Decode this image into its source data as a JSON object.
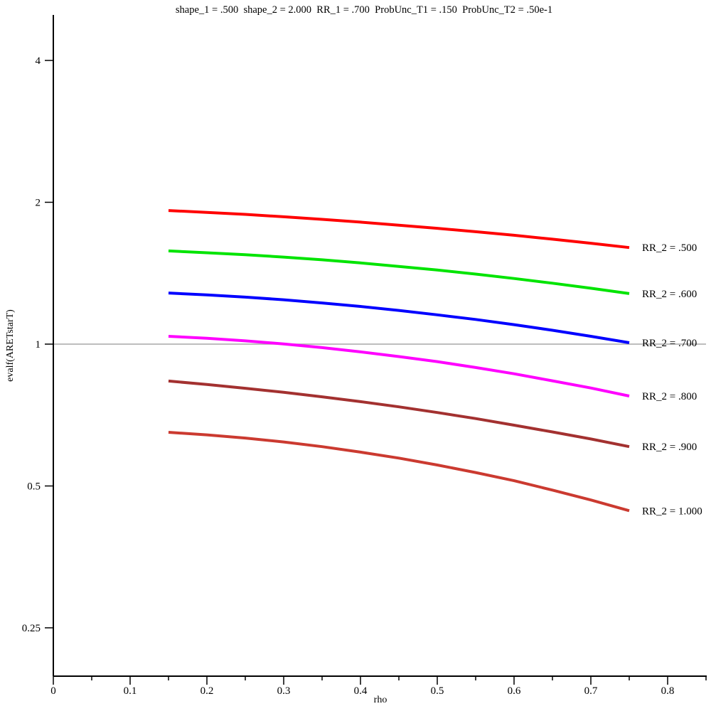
{
  "chart_data": {
    "type": "line",
    "title": "shape_1 = .500  shape_2 = 2.000  RR_1 = .700  ProbUnc_T1 = .150  ProbUnc_T2 = .50e-1",
    "xlabel": "rho",
    "ylabel": "evalf(ARETstarT)",
    "x_axis": {
      "min": 0,
      "max": 0.85,
      "major_ticks": [
        {
          "v": 0.0,
          "label": "0"
        },
        {
          "v": 0.1,
          "label": "0.1"
        },
        {
          "v": 0.2,
          "label": "0.2"
        },
        {
          "v": 0.3,
          "label": "0.3"
        },
        {
          "v": 0.4,
          "label": "0.4"
        },
        {
          "v": 0.5,
          "label": "0.5"
        },
        {
          "v": 0.6,
          "label": "0.6"
        },
        {
          "v": 0.7,
          "label": "0.7"
        },
        {
          "v": 0.8,
          "label": "0.8"
        }
      ],
      "minor_ticks": [
        0.05,
        0.15,
        0.25,
        0.35,
        0.45,
        0.55,
        0.65,
        0.75,
        0.85
      ]
    },
    "y_axis": {
      "scale": "log2",
      "ticks": [
        {
          "v": 4,
          "label": "4"
        },
        {
          "v": 2,
          "label": "2"
        },
        {
          "v": 1,
          "label": "1"
        },
        {
          "v": 0.5,
          "label": "0.5"
        },
        {
          "v": 0.25,
          "label": "0.25"
        }
      ]
    },
    "reference_line": {
      "y": 1,
      "color": "#a9a9a9"
    },
    "x": [
      0.15,
      0.2,
      0.25,
      0.3,
      0.35,
      0.4,
      0.45,
      0.5,
      0.55,
      0.6,
      0.65,
      0.7,
      0.75
    ],
    "series": [
      {
        "id": "rr2-500",
        "label": "RR_2 = .500",
        "color": "#ff0000",
        "values": [
          1.921,
          1.904,
          1.885,
          1.863,
          1.84,
          1.815,
          1.788,
          1.761,
          1.732,
          1.702,
          1.67,
          1.637,
          1.603
        ]
      },
      {
        "id": "rr2-600",
        "label": "RR_2 = .600",
        "color": "#00e400",
        "values": [
          1.577,
          1.563,
          1.548,
          1.53,
          1.51,
          1.487,
          1.462,
          1.436,
          1.408,
          1.378,
          1.347,
          1.314,
          1.28
        ]
      },
      {
        "id": "rr2-700",
        "label": "RR_2 = .700",
        "color": "#0000ff",
        "values": [
          1.284,
          1.272,
          1.258,
          1.242,
          1.223,
          1.202,
          1.179,
          1.154,
          1.128,
          1.1,
          1.07,
          1.039,
          1.007
        ]
      },
      {
        "id": "rr2-800",
        "label": "RR_2 = .800",
        "color": "#ff00ff",
        "values": [
          1.039,
          1.029,
          1.016,
          1.001,
          0.983,
          0.963,
          0.941,
          0.918,
          0.892,
          0.865,
          0.836,
          0.807,
          0.776
        ]
      },
      {
        "id": "rr2-900",
        "label": "RR_2 = .900",
        "color": "#a33130",
        "values": [
          0.835,
          0.821,
          0.806,
          0.79,
          0.773,
          0.755,
          0.736,
          0.716,
          0.695,
          0.673,
          0.651,
          0.629,
          0.606
        ]
      },
      {
        "id": "rr2-1000",
        "label": "RR_2 = 1.000",
        "color": "#cb3a30",
        "values": [
          0.65,
          0.642,
          0.632,
          0.62,
          0.606,
          0.59,
          0.573,
          0.554,
          0.534,
          0.513,
          0.49,
          0.467,
          0.443
        ]
      }
    ]
  }
}
